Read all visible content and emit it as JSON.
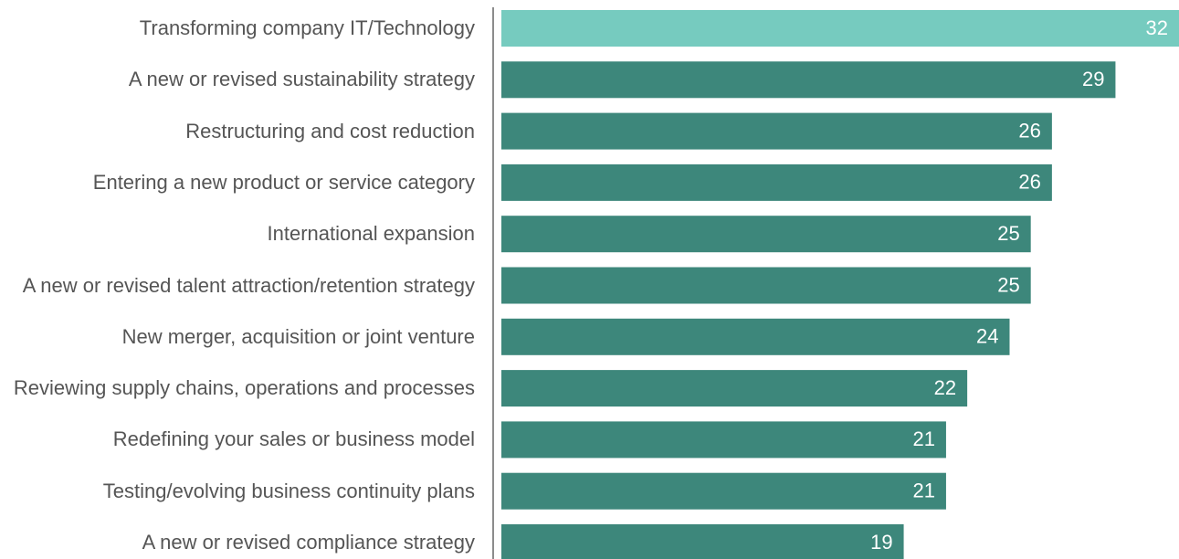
{
  "chart_data": {
    "type": "bar",
    "orientation": "horizontal",
    "categories": [
      "Transforming company IT/Technology",
      "A new or revised sustainability strategy",
      "Restructuring and cost reduction",
      "Entering a new product or service category",
      "International expansion",
      "A new or revised talent attraction/retention strategy",
      "New merger, acquisition or joint venture",
      "Reviewing supply chains, operations and processes",
      "Redefining your sales or business model",
      "Testing/evolving business continuity plans",
      "A new or revised compliance strategy"
    ],
    "values": [
      32,
      29,
      26,
      26,
      25,
      25,
      24,
      22,
      21,
      21,
      19
    ],
    "colors": [
      "#76cbbf",
      "#3d877b",
      "#3d877b",
      "#3d877b",
      "#3d877b",
      "#3d877b",
      "#3d877b",
      "#3d877b",
      "#3d877b",
      "#3d877b",
      "#3d877b"
    ],
    "xlim": [
      0,
      32
    ]
  }
}
